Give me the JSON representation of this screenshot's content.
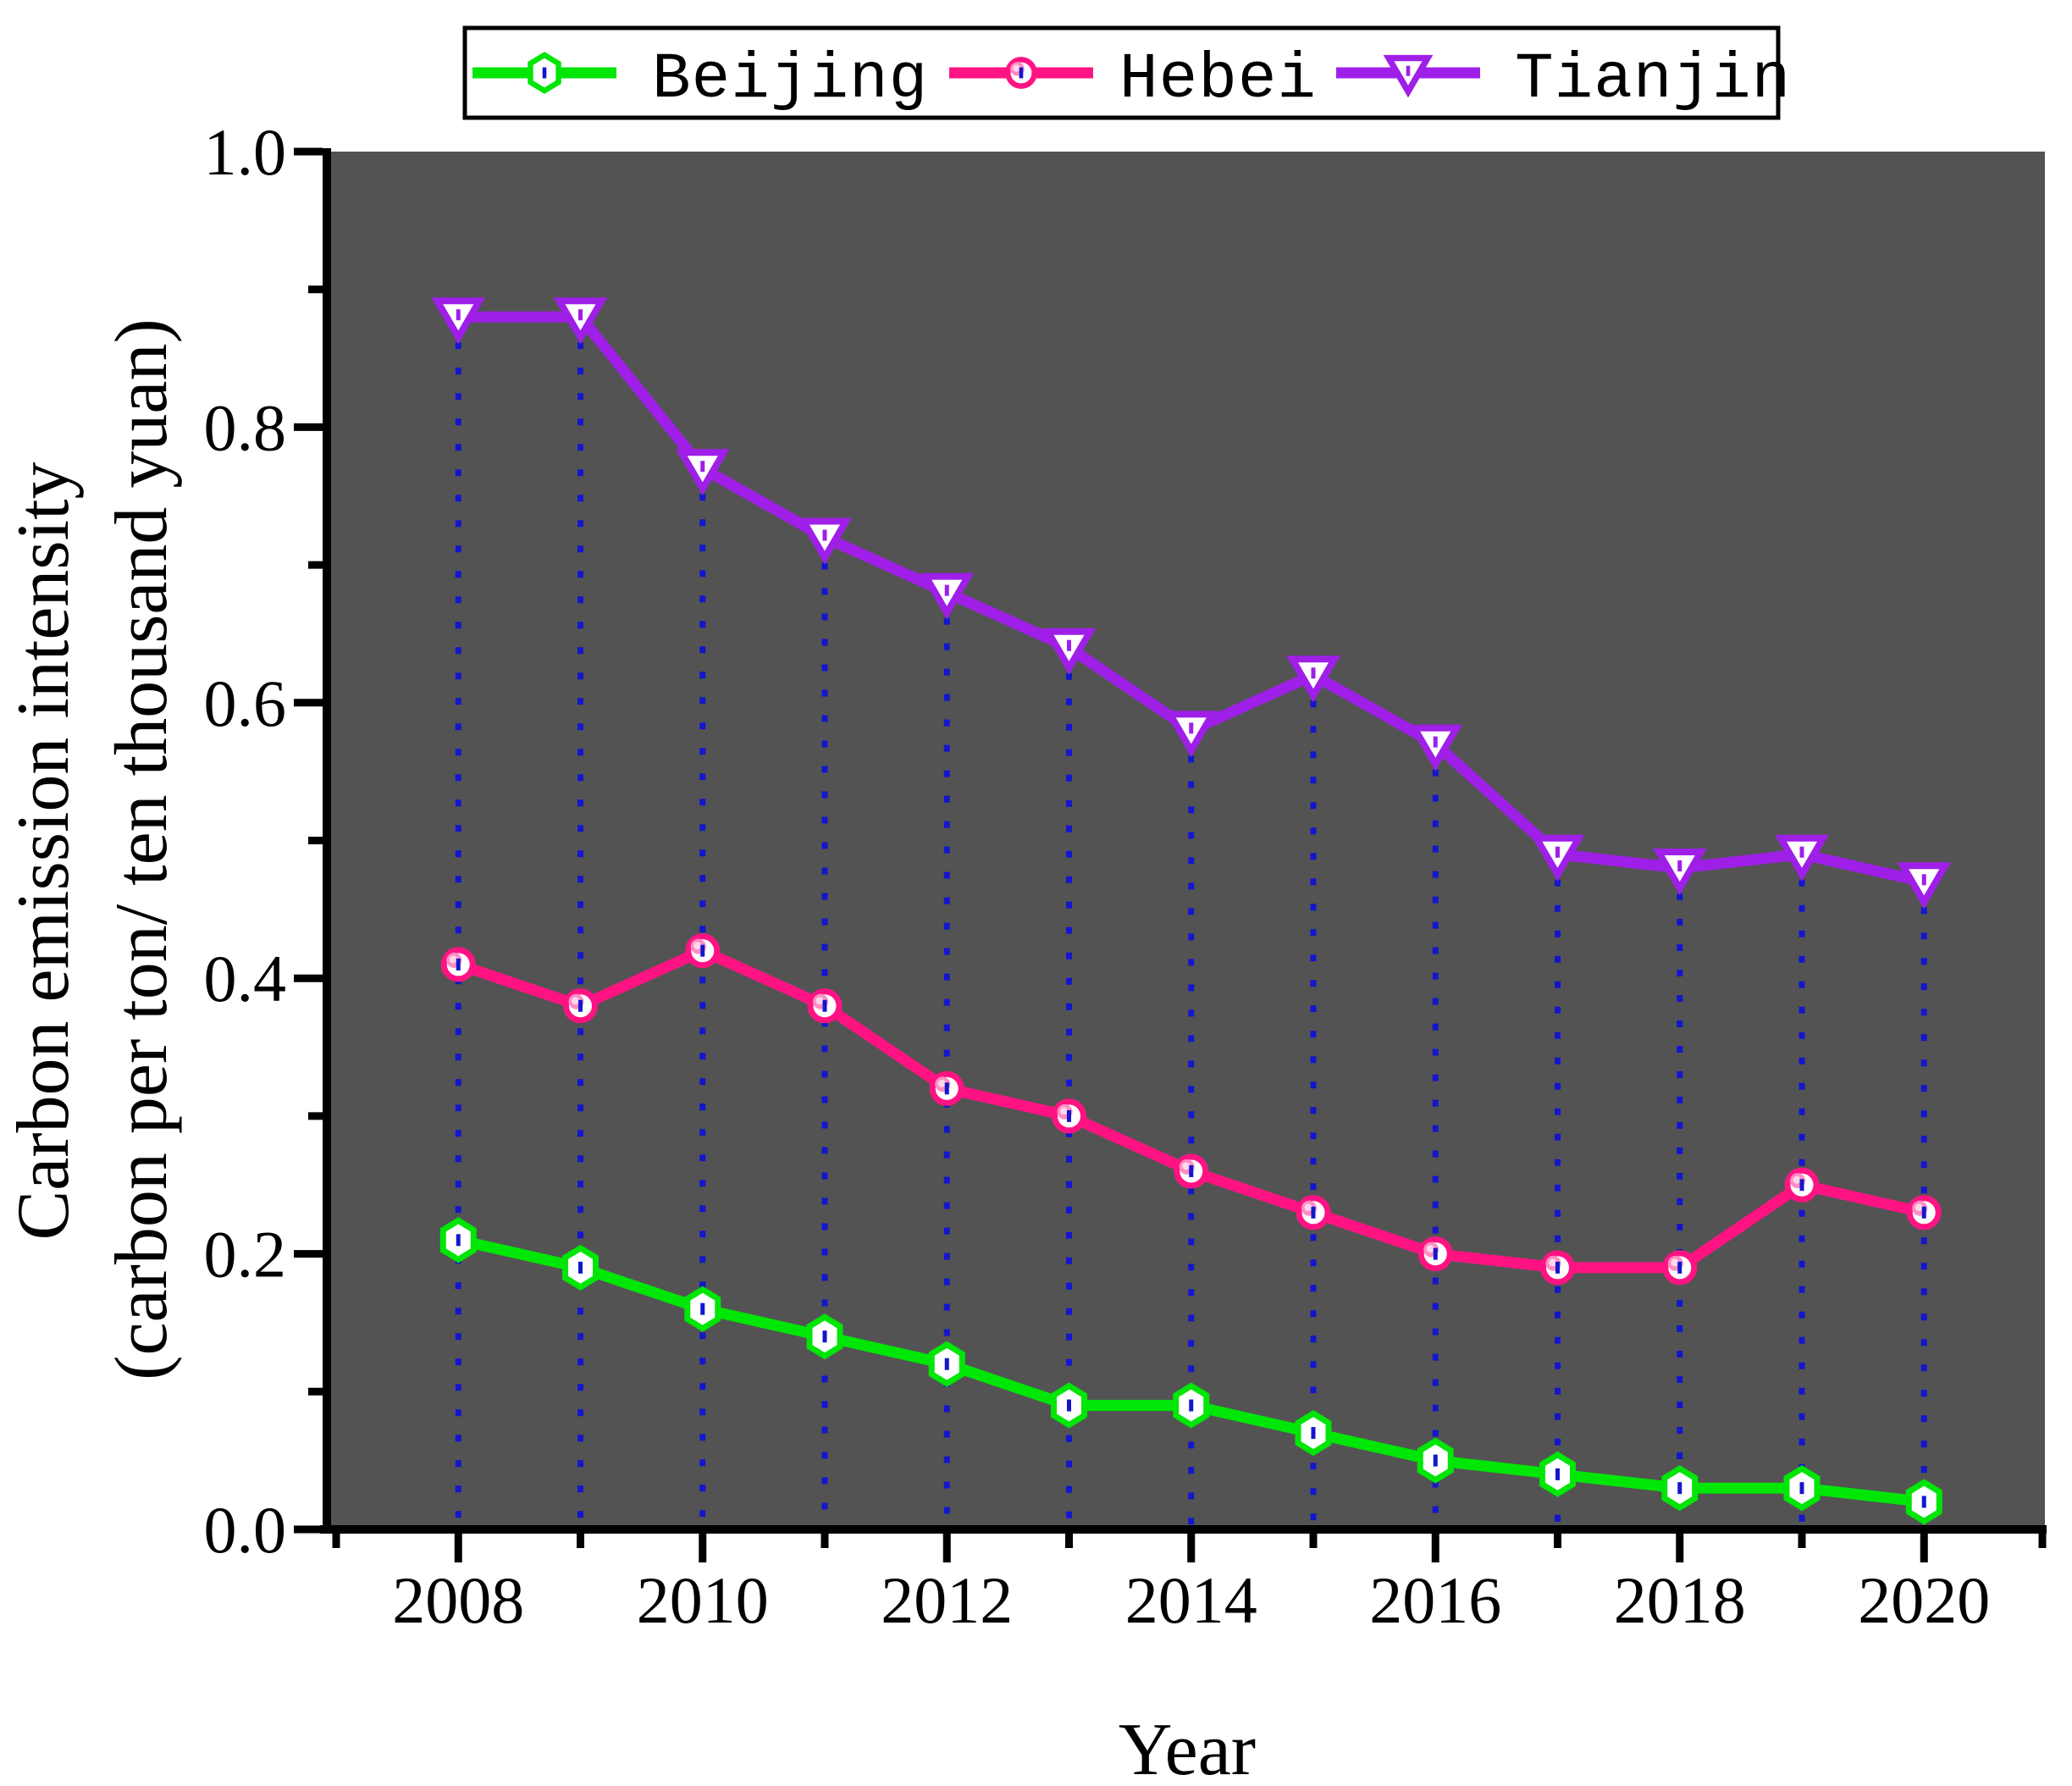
{
  "chart_data": {
    "type": "line",
    "title": "",
    "xlabel": "Year",
    "ylabel_line1": "Carbon emission intensity",
    "ylabel_line2": "(carbon per ton/ ten thousand yuan)",
    "x": [
      2008,
      2009,
      2010,
      2011,
      2012,
      2013,
      2014,
      2015,
      2016,
      2017,
      2018,
      2019,
      2020
    ],
    "series": [
      {
        "name": "Beijing",
        "color": "#00e606",
        "marker": "hexagon",
        "values": [
          0.21,
          0.19,
          0.16,
          0.14,
          0.12,
          0.09,
          0.09,
          0.07,
          0.05,
          0.04,
          0.03,
          0.03,
          0.02
        ]
      },
      {
        "name": "Hebei",
        "color": "#ff1383",
        "marker": "ball-circle",
        "values": [
          0.41,
          0.38,
          0.42,
          0.38,
          0.32,
          0.3,
          0.26,
          0.23,
          0.2,
          0.19,
          0.19,
          0.25,
          0.23
        ]
      },
      {
        "name": "Tianjin",
        "color": "#9f1fe8",
        "marker": "triangle-down",
        "values": [
          0.88,
          0.88,
          0.77,
          0.72,
          0.68,
          0.64,
          0.58,
          0.62,
          0.57,
          0.49,
          0.48,
          0.49,
          0.47
        ]
      }
    ],
    "xlim": [
      2007,
      2021
    ],
    "ylim": [
      0.0,
      1.0
    ],
    "yticks_major": [
      0.0,
      0.2,
      0.4,
      0.6,
      0.8,
      1.0
    ],
    "ytick_labels": [
      "0.0",
      "0.2",
      "0.4",
      "0.6",
      "0.8",
      "1.0"
    ],
    "yticks_minor_step": 0.1,
    "xticks_labeled": [
      2008,
      2010,
      2012,
      2014,
      2016,
      2018,
      2020
    ],
    "xtick_labels": [
      "2008",
      "2010",
      "2012",
      "2014",
      "2016",
      "2018",
      "2020"
    ],
    "grid": false,
    "legend_position": "top-horizontal",
    "plot_bg": "#535353",
    "axis_color": "#000000",
    "drop_lines": {
      "color": "#1316cd",
      "style": "dotted",
      "from_series": "Tianjin",
      "to": "x-axis"
    },
    "marker_fill": "#ffffff",
    "ball_highlight_outer": "#ff8ec4",
    "ball_highlight_inner": "#ffd6ea"
  },
  "legend": {
    "items": [
      {
        "label": "Beijing"
      },
      {
        "label": "Hebei"
      },
      {
        "label": "Tianjin"
      }
    ]
  }
}
